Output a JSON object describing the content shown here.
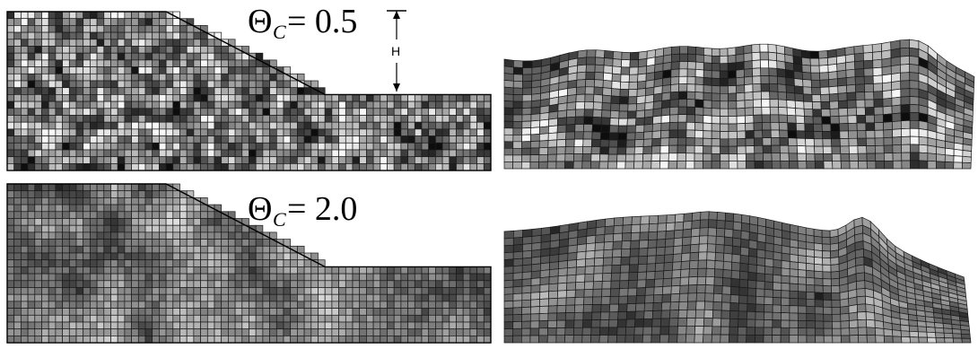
{
  "panels": [
    {
      "id": "theta-0_5",
      "label_symbol": "Θ",
      "label_subscript": "C",
      "label_value": "= 0.5",
      "seed": 7,
      "base_gray": 0.55,
      "variation": 0.9
    },
    {
      "id": "theta-2_0",
      "label_symbol": "Θ",
      "label_subscript": "C",
      "label_value": "= 2.0",
      "seed": 31,
      "base_gray": 0.5,
      "variation": 0.55
    }
  ],
  "dimension": {
    "label": "H"
  },
  "colors": {
    "grid_line": "#1a1a1a",
    "outline": "#000000"
  }
}
